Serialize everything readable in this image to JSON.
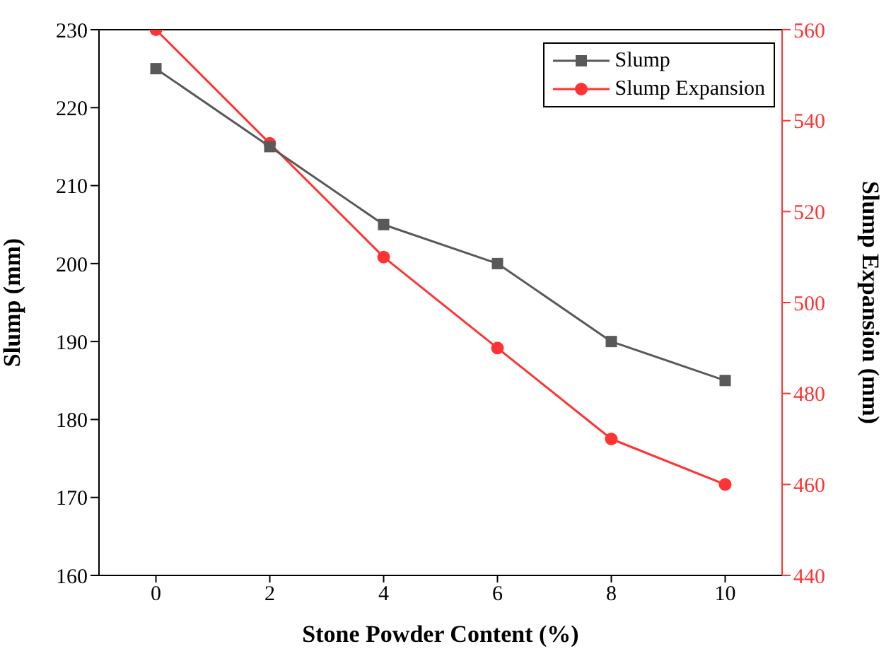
{
  "chart_data": {
    "type": "line",
    "xlabel": "Stone Powder Content (%)",
    "ylabel": "Slump (mm)",
    "y2label": "Slump Expansion (mm)",
    "x": [
      0,
      2,
      4,
      6,
      8,
      10
    ],
    "series": [
      {
        "name": "Slump",
        "color": "#595959",
        "values": [
          225,
          215,
          205,
          200,
          190,
          185
        ],
        "marker": "square"
      },
      {
        "name": "Slump Expansion",
        "color": "#ff3333",
        "values": [
          560,
          535,
          510,
          490,
          470,
          460
        ],
        "axis": "y2",
        "marker": "circle"
      }
    ],
    "xlim": [
      -1,
      11
    ],
    "xticks": [
      0,
      2,
      4,
      6,
      8,
      10
    ],
    "ylim": [
      160,
      230
    ],
    "yticks": [
      160,
      170,
      180,
      190,
      200,
      210,
      220,
      230
    ],
    "y2lim": [
      440,
      560
    ],
    "y2ticks": [
      440,
      460,
      480,
      500,
      520,
      540,
      560
    ],
    "grid": false,
    "legend": "top right",
    "line_style": "solid"
  }
}
